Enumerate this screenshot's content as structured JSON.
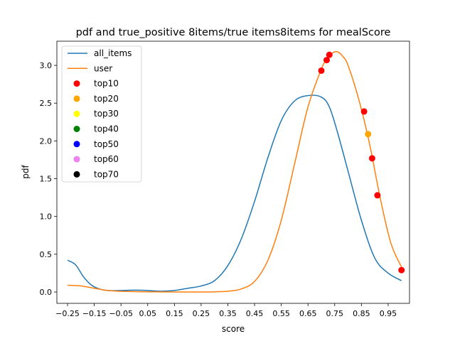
{
  "chart_data": {
    "type": "line",
    "title": "pdf and true_positive 8items/true items8items for mealScore",
    "xlabel": "score",
    "ylabel": "pdf",
    "xlim": [
      -0.29,
      1.03
    ],
    "ylim": [
      -0.15,
      3.32
    ],
    "x_ticks": [
      -0.25,
      -0.15,
      -0.05,
      0.05,
      0.15,
      0.25,
      0.35,
      0.45,
      0.55,
      0.65,
      0.75,
      0.85,
      0.95
    ],
    "x_tick_labels": [
      "−0.25",
      "−0.15",
      "−0.05",
      "0.05",
      "0.15",
      "0.25",
      "0.35",
      "0.45",
      "0.55",
      "0.65",
      "0.75",
      "0.85",
      "0.95"
    ],
    "y_ticks": [
      0.0,
      0.5,
      1.0,
      1.5,
      2.0,
      2.5,
      3.0
    ],
    "y_tick_labels": [
      "0.0",
      "0.5",
      "1.0",
      "1.5",
      "2.0",
      "2.5",
      "3.0"
    ],
    "grid": false,
    "legend_position": "top-left",
    "series": [
      {
        "name": "all_items",
        "kind": "line",
        "color": "#1f77b4",
        "x": [
          -0.25,
          -0.22,
          -0.19,
          -0.16,
          -0.13,
          -0.1,
          -0.05,
          0.0,
          0.05,
          0.1,
          0.15,
          0.2,
          0.25,
          0.3,
          0.35,
          0.4,
          0.45,
          0.5,
          0.55,
          0.6,
          0.65,
          0.7,
          0.73,
          0.76,
          0.8,
          0.85,
          0.9,
          0.95,
          1.0
        ],
        "y": [
          0.42,
          0.36,
          0.2,
          0.09,
          0.04,
          0.02,
          0.02,
          0.025,
          0.02,
          0.01,
          0.02,
          0.05,
          0.08,
          0.15,
          0.35,
          0.7,
          1.2,
          1.78,
          2.27,
          2.53,
          2.6,
          2.58,
          2.45,
          2.12,
          1.6,
          0.95,
          0.45,
          0.25,
          0.15
        ]
      },
      {
        "name": "user",
        "kind": "line",
        "color": "#ff7f0e",
        "x": [
          -0.25,
          -0.2,
          -0.15,
          -0.1,
          -0.05,
          0.0,
          0.05,
          0.1,
          0.15,
          0.2,
          0.25,
          0.3,
          0.35,
          0.4,
          0.45,
          0.5,
          0.55,
          0.6,
          0.65,
          0.7,
          0.72,
          0.74,
          0.76,
          0.78,
          0.8,
          0.84,
          0.88,
          0.92,
          0.96,
          1.0
        ],
        "y": [
          0.09,
          0.08,
          0.05,
          0.02,
          0.01,
          0.005,
          0.003,
          0.002,
          0.001,
          0.0,
          0.0,
          0.003,
          0.01,
          0.04,
          0.14,
          0.42,
          0.95,
          1.7,
          2.45,
          2.95,
          3.08,
          3.16,
          3.18,
          3.12,
          3.0,
          2.55,
          1.97,
          1.25,
          0.65,
          0.33
        ]
      },
      {
        "name": "top10",
        "kind": "scatter",
        "color": "#ff0000",
        "x": [
          0.7,
          0.72,
          0.73,
          0.86,
          0.89,
          0.91,
          1.0
        ],
        "y": [
          2.93,
          3.07,
          3.14,
          2.39,
          1.77,
          1.28,
          0.29
        ]
      },
      {
        "name": "top20",
        "kind": "scatter",
        "color": "#ffa500",
        "x": [
          0.875
        ],
        "y": [
          2.09
        ]
      },
      {
        "name": "top30",
        "kind": "scatter",
        "color": "#ffff00",
        "x": [],
        "y": []
      },
      {
        "name": "top40",
        "kind": "scatter",
        "color": "#008000",
        "x": [],
        "y": []
      },
      {
        "name": "top50",
        "kind": "scatter",
        "color": "#0000ff",
        "x": [],
        "y": []
      },
      {
        "name": "top60",
        "kind": "scatter",
        "color": "#ee82ee",
        "x": [],
        "y": []
      },
      {
        "name": "top70",
        "kind": "scatter",
        "color": "#000000",
        "x": [],
        "y": []
      }
    ]
  }
}
